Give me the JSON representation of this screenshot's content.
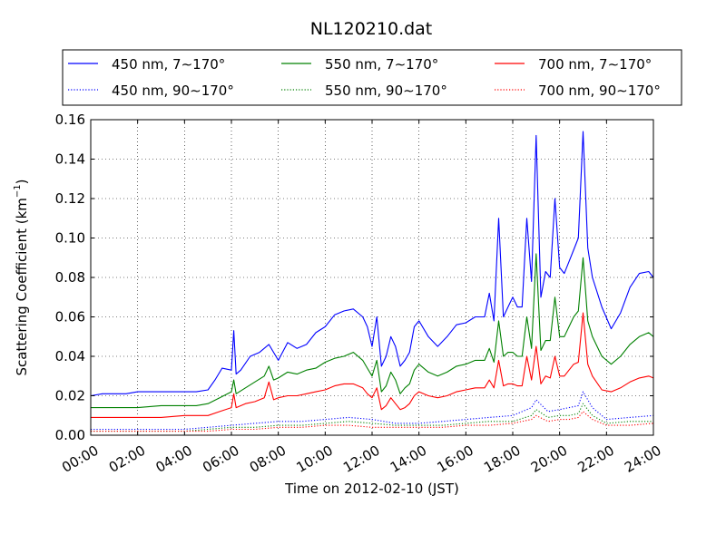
{
  "chart_data": {
    "type": "line",
    "title": "NL120210.dat",
    "xlabel": "Time on 2012-02-10 (JST)",
    "ylabel": "Scattering Coefficient (km",
    "ylabel_exponent": "−1",
    "ylabel_suffix": ")",
    "xlim": [
      0,
      24
    ],
    "ylim": [
      0,
      0.16
    ],
    "grid": true,
    "legend_position": "top (above plot), 3 columns",
    "x_tick_labels": [
      "00:00",
      "02:00",
      "04:00",
      "06:00",
      "08:00",
      "10:00",
      "12:00",
      "14:00",
      "16:00",
      "18:00",
      "20:00",
      "22:00",
      "24:00"
    ],
    "x_ticks": [
      0,
      2,
      4,
      6,
      8,
      10,
      12,
      14,
      16,
      18,
      20,
      22,
      24
    ],
    "y_tick_labels": [
      "0.00",
      "0.02",
      "0.04",
      "0.06",
      "0.08",
      "0.10",
      "0.12",
      "0.14",
      "0.16"
    ],
    "y_ticks": [
      0,
      0.02,
      0.04,
      0.06,
      0.08,
      0.1,
      0.12,
      0.14,
      0.16
    ],
    "x_unit": "hours (JST)",
    "series": [
      {
        "name": "450 nm, 7∼170°",
        "color": "#0000ff",
        "style": "solid",
        "x": [
          0,
          0.5,
          1,
          1.5,
          2,
          2.5,
          3,
          3.5,
          4,
          4.5,
          5,
          5.3,
          5.6,
          6,
          6.1,
          6.2,
          6.4,
          6.8,
          7.2,
          7.6,
          8,
          8.4,
          8.8,
          9.2,
          9.6,
          10,
          10.4,
          10.8,
          11.2,
          11.6,
          11.8,
          12,
          12.2,
          12.4,
          12.6,
          12.8,
          13,
          13.2,
          13.4,
          13.6,
          13.8,
          14,
          14.4,
          14.8,
          15.2,
          15.6,
          16,
          16.4,
          16.8,
          17,
          17.2,
          17.4,
          17.6,
          17.8,
          18,
          18.2,
          18.4,
          18.6,
          18.8,
          19,
          19.2,
          19.4,
          19.6,
          19.8,
          20,
          20.2,
          20.4,
          20.6,
          20.8,
          21,
          21.2,
          21.4,
          21.8,
          22.2,
          22.6,
          23,
          23.4,
          23.8,
          24
        ],
        "values": [
          0.02,
          0.021,
          0.021,
          0.021,
          0.022,
          0.022,
          0.022,
          0.022,
          0.022,
          0.022,
          0.023,
          0.028,
          0.034,
          0.033,
          0.053,
          0.031,
          0.033,
          0.04,
          0.042,
          0.046,
          0.038,
          0.047,
          0.044,
          0.046,
          0.052,
          0.055,
          0.061,
          0.063,
          0.064,
          0.06,
          0.055,
          0.045,
          0.06,
          0.035,
          0.04,
          0.05,
          0.045,
          0.035,
          0.038,
          0.042,
          0.055,
          0.058,
          0.05,
          0.045,
          0.05,
          0.056,
          0.057,
          0.06,
          0.06,
          0.072,
          0.058,
          0.11,
          0.06,
          0.065,
          0.07,
          0.065,
          0.065,
          0.11,
          0.078,
          0.152,
          0.07,
          0.083,
          0.08,
          0.12,
          0.085,
          0.082,
          0.088,
          0.094,
          0.1,
          0.154,
          0.095,
          0.08,
          0.065,
          0.054,
          0.062,
          0.075,
          0.082,
          0.083,
          0.08
        ]
      },
      {
        "name": "450 nm, 90∼170°",
        "color": "#0000ff",
        "style": "dotted",
        "x": [
          0,
          2,
          4,
          5,
          6,
          7,
          8,
          9,
          10,
          11,
          12,
          13,
          14,
          15,
          16,
          17,
          18,
          18.8,
          19,
          19.5,
          20,
          20.4,
          20.8,
          21,
          21.4,
          22,
          23,
          24
        ],
        "values": [
          0.003,
          0.003,
          0.003,
          0.004,
          0.005,
          0.006,
          0.007,
          0.007,
          0.008,
          0.009,
          0.008,
          0.006,
          0.006,
          0.007,
          0.008,
          0.009,
          0.01,
          0.014,
          0.018,
          0.012,
          0.013,
          0.014,
          0.015,
          0.022,
          0.014,
          0.008,
          0.009,
          0.01
        ]
      },
      {
        "name": "550 nm, 7∼170°",
        "color": "#008000",
        "style": "solid",
        "x": [
          0,
          1,
          2,
          3,
          4,
          4.5,
          5,
          5.5,
          6,
          6.1,
          6.2,
          6.6,
          7,
          7.4,
          7.6,
          7.8,
          8,
          8.4,
          8.8,
          9.2,
          9.6,
          10,
          10.4,
          10.8,
          11.2,
          11.6,
          11.8,
          12,
          12.2,
          12.4,
          12.6,
          12.8,
          13,
          13.2,
          13.4,
          13.6,
          13.8,
          14,
          14.4,
          14.8,
          15.2,
          15.6,
          16,
          16.4,
          16.8,
          17,
          17.2,
          17.4,
          17.6,
          17.8,
          18,
          18.2,
          18.4,
          18.6,
          18.8,
          19,
          19.2,
          19.4,
          19.6,
          19.8,
          20,
          20.2,
          20.4,
          20.6,
          20.8,
          21,
          21.2,
          21.4,
          21.8,
          22.2,
          22.6,
          23,
          23.4,
          23.8,
          24
        ],
        "values": [
          0.014,
          0.014,
          0.014,
          0.015,
          0.015,
          0.015,
          0.016,
          0.019,
          0.022,
          0.028,
          0.021,
          0.024,
          0.027,
          0.03,
          0.035,
          0.028,
          0.029,
          0.032,
          0.031,
          0.033,
          0.034,
          0.037,
          0.039,
          0.04,
          0.042,
          0.038,
          0.034,
          0.03,
          0.038,
          0.022,
          0.025,
          0.032,
          0.028,
          0.021,
          0.024,
          0.026,
          0.033,
          0.036,
          0.032,
          0.03,
          0.032,
          0.035,
          0.036,
          0.038,
          0.038,
          0.044,
          0.037,
          0.058,
          0.04,
          0.042,
          0.042,
          0.04,
          0.04,
          0.06,
          0.044,
          0.092,
          0.043,
          0.048,
          0.048,
          0.07,
          0.05,
          0.05,
          0.055,
          0.06,
          0.063,
          0.09,
          0.058,
          0.05,
          0.04,
          0.036,
          0.04,
          0.046,
          0.05,
          0.052,
          0.05
        ]
      },
      {
        "name": "550 nm, 90∼170°",
        "color": "#008000",
        "style": "dotted",
        "x": [
          0,
          2,
          4,
          5,
          6,
          7,
          8,
          9,
          10,
          11,
          12,
          13,
          14,
          15,
          16,
          17,
          18,
          18.8,
          19,
          19.5,
          20,
          20.4,
          20.8,
          21,
          21.4,
          22,
          23,
          24
        ],
        "values": [
          0.002,
          0.002,
          0.002,
          0.003,
          0.004,
          0.004,
          0.005,
          0.005,
          0.006,
          0.007,
          0.006,
          0.005,
          0.005,
          0.005,
          0.006,
          0.007,
          0.007,
          0.01,
          0.013,
          0.009,
          0.01,
          0.01,
          0.011,
          0.016,
          0.01,
          0.006,
          0.007,
          0.007
        ]
      },
      {
        "name": "700 nm, 7∼170°",
        "color": "#ff0000",
        "style": "solid",
        "x": [
          0,
          1,
          2,
          3,
          4,
          4.5,
          5,
          5.5,
          6,
          6.1,
          6.2,
          6.6,
          7,
          7.4,
          7.6,
          7.8,
          8,
          8.4,
          8.8,
          9.2,
          9.6,
          10,
          10.4,
          10.8,
          11.2,
          11.6,
          11.8,
          12,
          12.2,
          12.4,
          12.6,
          12.8,
          13,
          13.2,
          13.4,
          13.6,
          13.8,
          14,
          14.4,
          14.8,
          15.2,
          15.6,
          16,
          16.4,
          16.8,
          17,
          17.2,
          17.4,
          17.6,
          17.8,
          18,
          18.2,
          18.4,
          18.6,
          18.8,
          19,
          19.2,
          19.4,
          19.6,
          19.8,
          20,
          20.2,
          20.4,
          20.6,
          20.8,
          21,
          21.2,
          21.4,
          21.8,
          22.2,
          22.6,
          23,
          23.4,
          23.8,
          24
        ],
        "values": [
          0.009,
          0.009,
          0.009,
          0.009,
          0.01,
          0.01,
          0.01,
          0.012,
          0.014,
          0.021,
          0.014,
          0.016,
          0.017,
          0.019,
          0.027,
          0.018,
          0.019,
          0.02,
          0.02,
          0.021,
          0.022,
          0.023,
          0.025,
          0.026,
          0.026,
          0.024,
          0.021,
          0.019,
          0.024,
          0.013,
          0.015,
          0.019,
          0.016,
          0.013,
          0.014,
          0.016,
          0.02,
          0.022,
          0.02,
          0.019,
          0.02,
          0.022,
          0.023,
          0.024,
          0.024,
          0.028,
          0.024,
          0.038,
          0.025,
          0.026,
          0.026,
          0.025,
          0.025,
          0.04,
          0.028,
          0.045,
          0.026,
          0.03,
          0.029,
          0.04,
          0.03,
          0.03,
          0.033,
          0.036,
          0.037,
          0.062,
          0.036,
          0.03,
          0.023,
          0.022,
          0.024,
          0.027,
          0.029,
          0.03,
          0.029
        ]
      },
      {
        "name": "700 nm, 90∼170°",
        "color": "#ff0000",
        "style": "dotted",
        "x": [
          0,
          2,
          4,
          5,
          6,
          7,
          8,
          9,
          10,
          11,
          12,
          13,
          14,
          15,
          16,
          17,
          18,
          18.8,
          19,
          19.5,
          20,
          20.4,
          20.8,
          21,
          21.4,
          22,
          23,
          24
        ],
        "values": [
          0.002,
          0.002,
          0.002,
          0.002,
          0.003,
          0.003,
          0.004,
          0.004,
          0.005,
          0.005,
          0.004,
          0.004,
          0.004,
          0.004,
          0.005,
          0.005,
          0.006,
          0.008,
          0.01,
          0.007,
          0.008,
          0.008,
          0.009,
          0.012,
          0.008,
          0.005,
          0.005,
          0.006
        ]
      }
    ]
  }
}
